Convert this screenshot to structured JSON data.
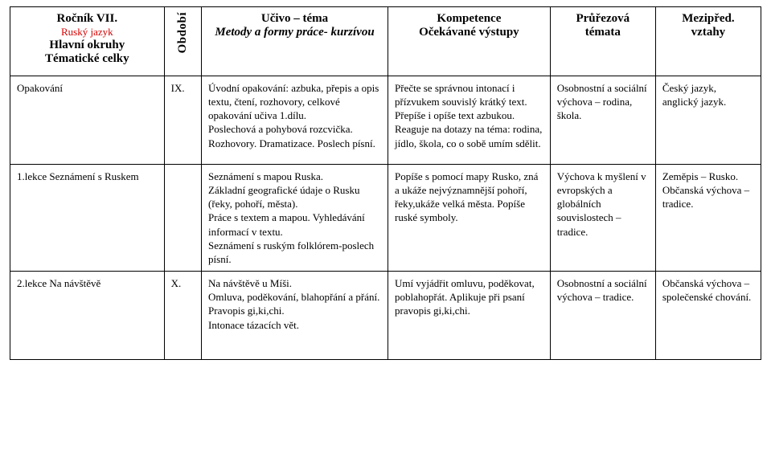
{
  "header": {
    "grade_line": "Ročník VII.",
    "subject_line": "Ruský jazyk",
    "topic_main": "Hlavní okruhy",
    "topic_sub": "Tématické celky",
    "period": "Období",
    "ucivo_line1": "Učivo – téma",
    "ucivo_line2": "Metody a formy práce- kurzívou",
    "komp_line1": "Kompetence",
    "komp_line2": "Očekávané výstupy",
    "pruz_line1": "Průřezová",
    "pruz_line2": "témata",
    "mezip_line1": "Mezipřed.",
    "mezip_line2": "vztahy"
  },
  "rows": [
    {
      "topic": "Opakování",
      "period": "IX.",
      "ucivo": "Úvodní opakování: azbuka, přepis a opis textu, čtení, rozhovory, celkové opakování učiva 1.dílu.\nPoslechová a pohybová rozcvička. Rozhovory. Dramatizace. Poslech písní.",
      "komp": "Přečte se správnou intonací i přízvukem souvislý krátký text. Přepíše i opíše text azbukou. Reaguje na dotazy na téma: rodina, jídlo, škola, co o sobě umím sdělit.",
      "pruz": "Osobnostní a sociální výchova – rodina, škola.",
      "mezip": "Český jazyk, anglický jazyk."
    },
    {
      "topic": "1.lekce Seznámení s Ruskem",
      "period": "",
      "ucivo": "Seznámení s mapou Ruska.\nZákladní geografické údaje o Rusku (řeky, pohoří, města).\nPráce s textem a mapou. Vyhledávání informací v textu.\nSeznámení s ruským folklórem-poslech písní.",
      "komp": "Popíše s pomocí mapy Rusko, zná a ukáže nejvýznamnější pohoří, řeky,ukáže velká města. Popíše ruské symboly.",
      "pruz": "Výchova k myšlení v evropských a globálních souvislostech – tradice.",
      "mezip": "Zeměpis – Rusko.\nObčanská výchova – tradice."
    },
    {
      "topic": "2.lekce  Na návštěvě",
      "period": "X.",
      "ucivo": "Na návštěvě u Míši.\n Omluva, poděkování, blahopřání a přání.\nPravopis gi,ki,chi.\nIntonace tázacích vět.",
      "komp": "Umí vyjádřit omluvu, poděkovat, poblahopřát. Aplikuje při psaní pravopis gi,ki,chi.",
      "pruz": "Osobnostní a sociální výchova – tradice.",
      "mezip": "Občanská výchova – společenské chování."
    }
  ]
}
